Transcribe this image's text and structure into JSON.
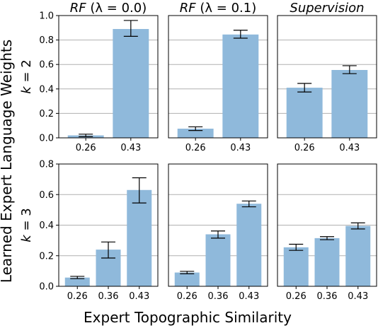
{
  "figure": {
    "ylabel": "Learned Expert Language Weights",
    "xlabel": "Expert Topographic Similarity",
    "bar_color": "#8fb9db",
    "grid_color": "#b0b0b0",
    "columns": [
      "RF (λ = 0.0)",
      "RF (λ = 0.1)",
      "Supervision"
    ],
    "rows": [
      "k = 2",
      "k = 3"
    ]
  },
  "chart_data": [
    {
      "type": "bar",
      "title": "RF (λ = 0.0)",
      "row_label": "k = 2",
      "categories": [
        "0.26",
        "0.43"
      ],
      "values": [
        0.02,
        0.89
      ],
      "err_low": [
        0.01,
        0.83
      ],
      "err_high": [
        0.03,
        0.96
      ],
      "ylim": [
        0,
        1.0
      ],
      "yticks": [
        "0.0",
        "0.2",
        "0.4",
        "0.6",
        "0.8",
        "1.0"
      ],
      "grid": true
    },
    {
      "type": "bar",
      "title": "RF (λ = 0.1)",
      "row_label": "k = 2",
      "categories": [
        "0.26",
        "0.43"
      ],
      "values": [
        0.075,
        0.845
      ],
      "err_low": [
        0.06,
        0.815
      ],
      "err_high": [
        0.09,
        0.88
      ],
      "ylim": [
        0,
        1.0
      ],
      "yticks": [],
      "grid": true
    },
    {
      "type": "bar",
      "title": "Supervision",
      "row_label": "k = 2",
      "categories": [
        "0.26",
        "0.43"
      ],
      "values": [
        0.41,
        0.555
      ],
      "err_low": [
        0.375,
        0.525
      ],
      "err_high": [
        0.445,
        0.59
      ],
      "ylim": [
        0,
        1.0
      ],
      "yticks": [],
      "grid": true
    },
    {
      "type": "bar",
      "title": "",
      "row_label": "k = 3",
      "categories": [
        "0.26",
        "0.36",
        "0.43"
      ],
      "values": [
        0.057,
        0.24,
        0.63
      ],
      "err_low": [
        0.05,
        0.185,
        0.545
      ],
      "err_high": [
        0.065,
        0.29,
        0.71
      ],
      "ylim": [
        0,
        0.8
      ],
      "yticks": [
        "0.0",
        "0.2",
        "0.4",
        "0.6",
        "0.8"
      ],
      "grid": true
    },
    {
      "type": "bar",
      "title": "",
      "row_label": "k = 3",
      "categories": [
        "0.26",
        "0.36",
        "0.43"
      ],
      "values": [
        0.09,
        0.34,
        0.54
      ],
      "err_low": [
        0.082,
        0.315,
        0.52
      ],
      "err_high": [
        0.098,
        0.362,
        0.558
      ],
      "ylim": [
        0,
        0.8
      ],
      "yticks": [],
      "grid": true
    },
    {
      "type": "bar",
      "title": "",
      "row_label": "k = 3",
      "categories": [
        "0.26",
        "0.36",
        "0.43"
      ],
      "values": [
        0.255,
        0.315,
        0.395
      ],
      "err_low": [
        0.235,
        0.305,
        0.375
      ],
      "err_high": [
        0.275,
        0.325,
        0.415
      ],
      "ylim": [
        0,
        0.8
      ],
      "yticks": [],
      "grid": true
    }
  ]
}
